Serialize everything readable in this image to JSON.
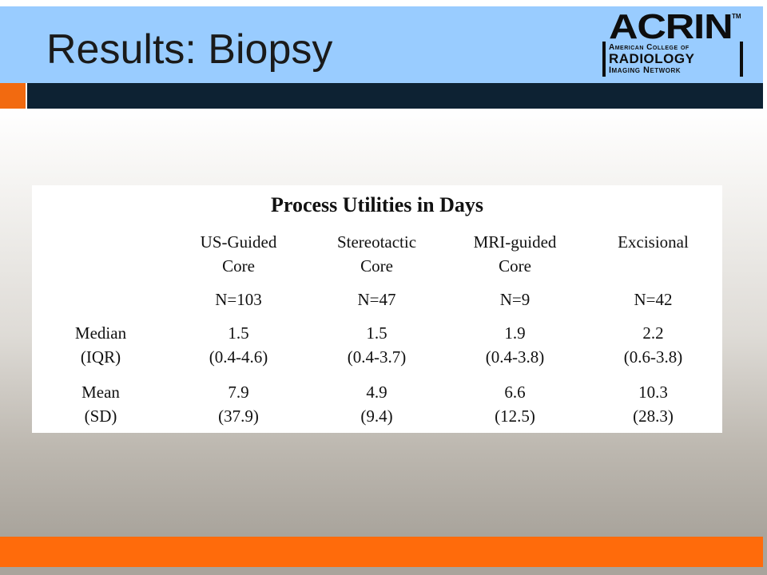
{
  "slide": {
    "title": "Results:  Biopsy"
  },
  "logo": {
    "acrin": "ACRIN",
    "tm": "TM",
    "line1": "American College of",
    "line2": "RADIOLOGY",
    "line3": "Imaging Network"
  },
  "table": {
    "title": "Process Utilities in Days",
    "columns": [
      {
        "line1": "US-Guided",
        "line2": "Core",
        "n": "N=103"
      },
      {
        "line1": "Stereotactic",
        "line2": "Core",
        "n": "N=47"
      },
      {
        "line1": "MRI-guided",
        "line2": "Core",
        "n": "N=9"
      },
      {
        "line1": "Excisional",
        "line2": "",
        "n": "N=42"
      }
    ],
    "rows": [
      {
        "label1": "Median",
        "label2": "(IQR)",
        "cells": [
          {
            "v": "1.5",
            "s": "(0.4-4.6)"
          },
          {
            "v": "1.5",
            "s": "(0.4-3.7)"
          },
          {
            "v": "1.9",
            "s": "(0.4-3.8)"
          },
          {
            "v": "2.2",
            "s": "(0.6-3.8)"
          }
        ]
      },
      {
        "label1": "Mean",
        "label2": "(SD)",
        "cells": [
          {
            "v": "7.9",
            "s": "(37.9)"
          },
          {
            "v": "4.9",
            "s": "(9.4)"
          },
          {
            "v": "6.6",
            "s": "(12.5)"
          },
          {
            "v": "10.3",
            "s": "(28.3)"
          }
        ]
      }
    ]
  },
  "colors": {
    "title_bar": "#99ccff",
    "dark_bar": "#0d2233",
    "accent_orange": "#ff6b0b"
  }
}
